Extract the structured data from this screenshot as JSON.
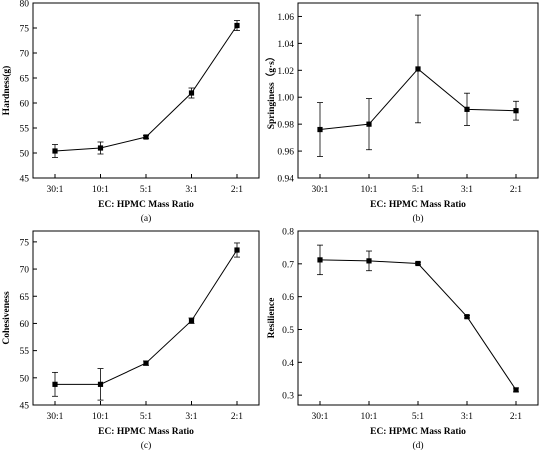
{
  "chart_data": [
    {
      "type": "line",
      "panel_label": "(a)",
      "xlabel": "EC: HPMC Mass Ratio",
      "ylabel": "Hardness(g)",
      "categories": [
        "30:1",
        "10:1",
        "5:1",
        "3:1",
        "2:1"
      ],
      "ylim": [
        45,
        80
      ],
      "yticks": [
        "45",
        "50",
        "55",
        "60",
        "65",
        "70",
        "75",
        "80"
      ],
      "series": [
        {
          "values": [
            50.4,
            51.0,
            53.2,
            62.0,
            75.5
          ],
          "errors": [
            1.3,
            1.2,
            0.3,
            1.0,
            1.0
          ]
        }
      ],
      "grid": false,
      "color": "#000000"
    },
    {
      "type": "line",
      "panel_label": "(b)",
      "xlabel": "EC: HPMC Mass Ratio",
      "ylabel": "Springiness（g·s）",
      "categories": [
        "30:1",
        "10:1",
        "5:1",
        "3:1",
        "2:1"
      ],
      "ylim": [
        0.94,
        1.07
      ],
      "yticks": [
        "0.94",
        "0.96",
        "0.98",
        "1.00",
        "1.02",
        "1.04",
        "1.06"
      ],
      "series": [
        {
          "values": [
            0.976,
            0.98,
            1.021,
            0.991,
            0.99
          ],
          "errors": [
            0.02,
            0.019,
            0.04,
            0.012,
            0.007
          ]
        }
      ],
      "grid": false,
      "color": "#000000"
    },
    {
      "type": "line",
      "panel_label": "(c)",
      "xlabel": "EC: HPMC Mass Ratio",
      "ylabel": "Cohesiveness",
      "categories": [
        "30:1",
        "10:1",
        "5:1",
        "3:1",
        "2:1"
      ],
      "ylim": [
        45,
        77
      ],
      "yticks": [
        "45",
        "50",
        "55",
        "60",
        "65",
        "70",
        "75"
      ],
      "series": [
        {
          "values": [
            48.8,
            48.8,
            52.7,
            60.5,
            73.5
          ],
          "errors": [
            2.2,
            2.9,
            0.4,
            0.5,
            1.3
          ]
        }
      ],
      "grid": false,
      "color": "#000000"
    },
    {
      "type": "line",
      "panel_label": "(d)",
      "xlabel": "EC: HPMC Mass Ratio",
      "ylabel": "Resilience",
      "categories": [
        "30:1",
        "10:1",
        "5:1",
        "3:1",
        "2:1"
      ],
      "ylim": [
        0.27,
        0.8
      ],
      "yticks": [
        "0.3",
        "0.4",
        "0.5",
        "0.6",
        "0.7",
        "0.8"
      ],
      "series": [
        {
          "values": [
            0.712,
            0.709,
            0.701,
            0.539,
            0.316
          ],
          "errors": [
            0.045,
            0.03,
            0.004,
            0.004,
            0.006
          ]
        }
      ],
      "grid": false,
      "color": "#000000"
    }
  ]
}
